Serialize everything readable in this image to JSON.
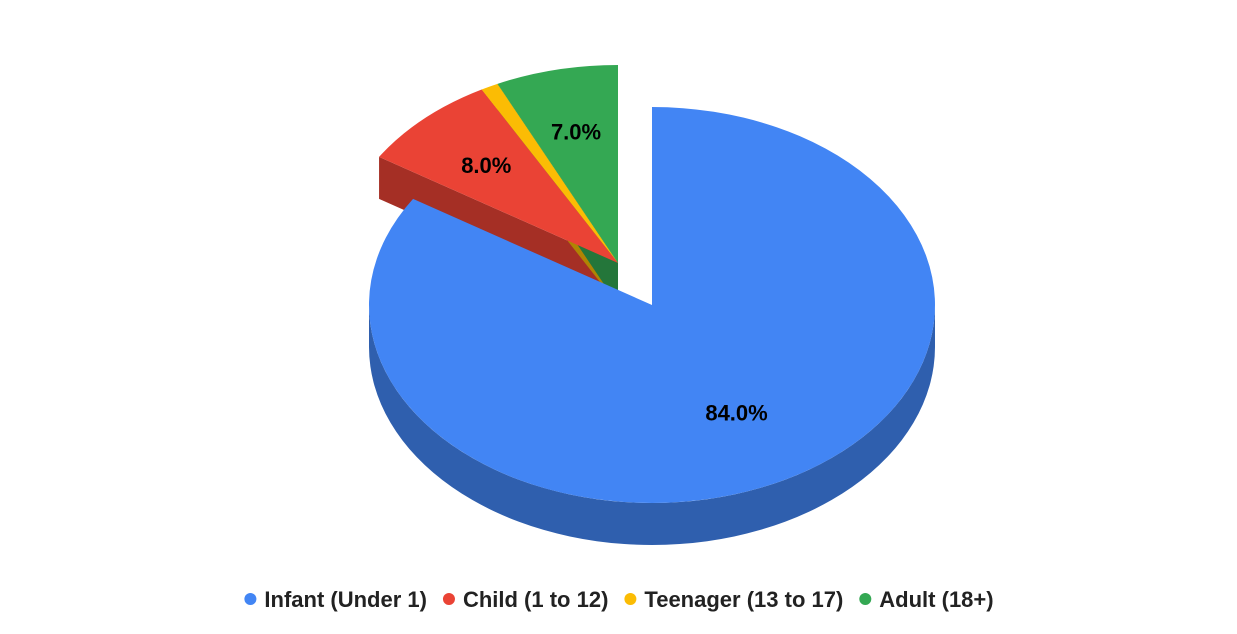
{
  "chart_data": {
    "type": "pie",
    "style": "3d-exploded",
    "title": "",
    "legend_position": "bottom",
    "slices": [
      {
        "name": "Infant (Under 1)",
        "value": 84.0,
        "label": "84.0%",
        "color": "#4285f4",
        "side_color": "#2f5fae",
        "exploded": false
      },
      {
        "name": "Child (1 to 12)",
        "value": 8.0,
        "label": "8.0%",
        "color": "#ea4335",
        "side_color": "#a52f25",
        "exploded": true
      },
      {
        "name": "Teenager (13 to 17)",
        "value": 1.0,
        "label": "",
        "color": "#fbbc04",
        "side_color": "#b08403",
        "exploded": true
      },
      {
        "name": "Adult (18+)",
        "value": 7.0,
        "label": "7.0%",
        "color": "#34a853",
        "side_color": "#24763a",
        "exploded": true
      }
    ]
  }
}
